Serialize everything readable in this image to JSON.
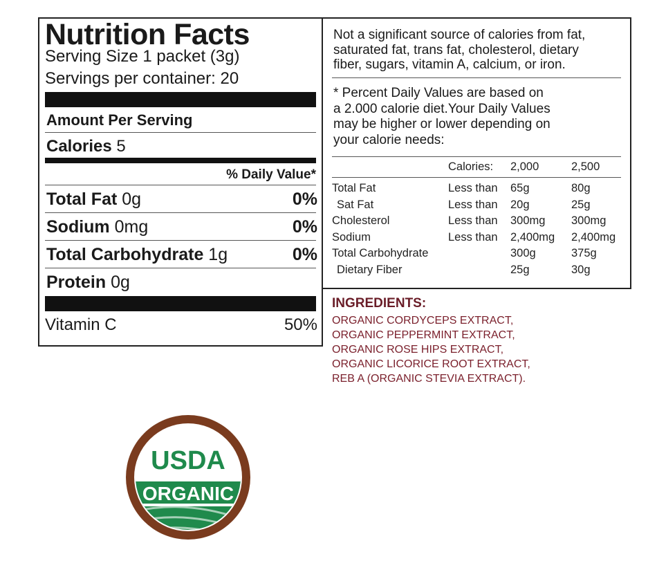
{
  "nutrition": {
    "title": "Nutrition Facts",
    "serving_size": "Serving Size 1 packet (3g)",
    "servings": "Servings per container: 20",
    "amount_per_serving": "Amount Per Serving",
    "calories": {
      "label": "Calories",
      "value": "5"
    },
    "daily_value_header": "% Daily Value*",
    "nutrients": [
      {
        "name": "Total Fat",
        "amount": "0g",
        "dv": "0%"
      },
      {
        "name": "Sodium",
        "amount": "0mg",
        "dv": "0%"
      },
      {
        "name": "Total Carbohydrate",
        "amount": "1g",
        "dv": "0%"
      },
      {
        "name": "Protein",
        "amount": "0g"
      }
    ],
    "vitamin": {
      "name": "Vitamin C",
      "dv": "50%"
    }
  },
  "notes": {
    "not_significant": [
      "Not a significant source of calories from fat,",
      "saturated fat, trans fat, cholesterol, dietary",
      "fiber, sugars, vitamin A, calcium, or iron."
    ],
    "footnote": [
      "* Percent Daily Values are based on",
      "a 2.000 calorie diet.Your Daily Values",
      "may be higher or lower depending on",
      "your calorie needs:"
    ]
  },
  "dv_table": {
    "header": [
      "Calories:",
      "2,000",
      "2,500"
    ],
    "rows": [
      {
        "name": "Total Fat",
        "limit": "Less than",
        "v2000": "65g",
        "v2500": "80g"
      },
      {
        "name": "Sat Fat",
        "limit": "Less than",
        "v2000": "20g",
        "v2500": "25g"
      },
      {
        "name": "Cholesterol",
        "limit": "Less than",
        "v2000": "300mg",
        "v2500": "300mg"
      },
      {
        "name": "Sodium",
        "limit": "Less than",
        "v2000": "2,400mg",
        "v2500": "2,400mg"
      },
      {
        "name": "Total Carbohydrate",
        "v2000": "300g",
        "v2500": "375g"
      },
      {
        "name": "Dietary Fiber",
        "v2000": "25g",
        "v2500": "30g"
      }
    ]
  },
  "ingredients": {
    "title": "INGREDIENTS:",
    "items": [
      "ORGANIC CORDYCEPS EXTRACT,",
      "ORGANIC PEPPERMINT EXTRACT,",
      "ORGANIC ROSE HIPS EXTRACT,",
      "ORGANIC LICORICE ROOT EXTRACT,",
      "REB A (ORGANIC STEVIA EXTRACT)."
    ]
  },
  "seal": {
    "top": "USDA",
    "bottom": "ORGANIC"
  }
}
